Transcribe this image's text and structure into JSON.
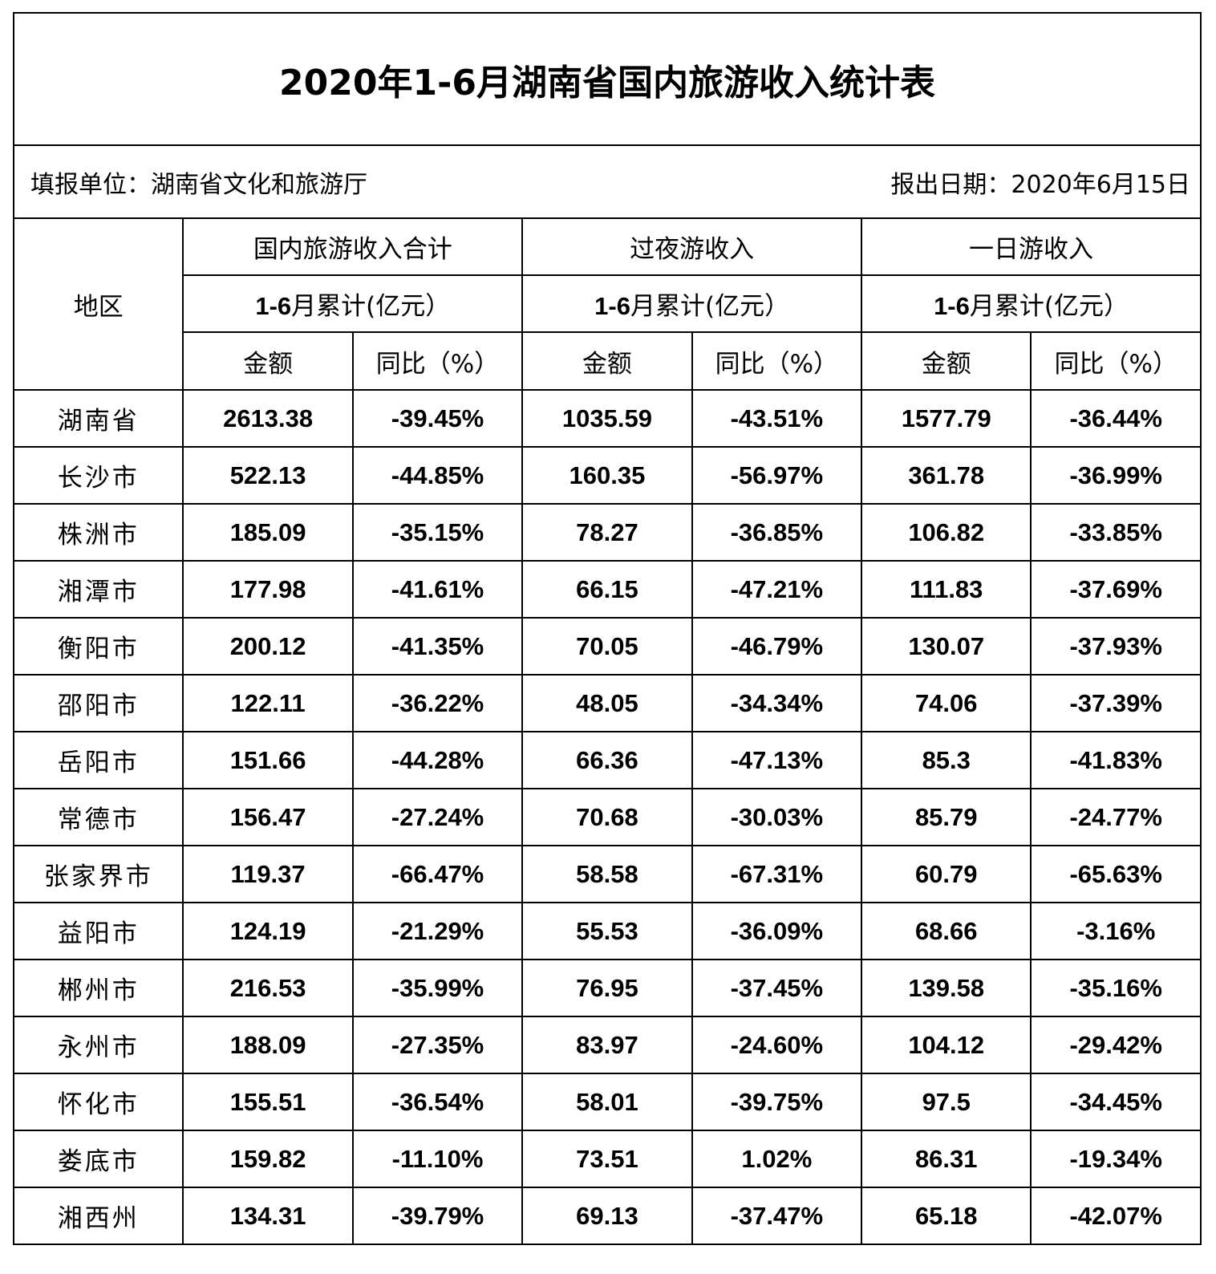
{
  "title": "2020年1-6月湖南省国内旅游收入统计表",
  "report_unit": "填报单位：湖南省文化和旅游厅",
  "report_date": "报出日期：2020年6月15日",
  "header": {
    "region": "地区",
    "groups": [
      "国内旅游收入合计",
      "过夜游收入",
      "一日游收入"
    ],
    "period": "1-6月累计(亿元）",
    "amount": "金额",
    "yoy": "同比（%）"
  },
  "rows": [
    {
      "region": "湖南省",
      "cells": [
        "2613.38",
        "-39.45%",
        "1035.59",
        "-43.51%",
        "1577.79",
        "-36.44%"
      ]
    },
    {
      "region": "长沙市",
      "cells": [
        "522.13",
        "-44.85%",
        "160.35",
        "-56.97%",
        "361.78",
        "-36.99%"
      ]
    },
    {
      "region": "株洲市",
      "cells": [
        "185.09",
        "-35.15%",
        "78.27",
        "-36.85%",
        "106.82",
        "-33.85%"
      ]
    },
    {
      "region": "湘潭市",
      "cells": [
        "177.98",
        "-41.61%",
        "66.15",
        "-47.21%",
        "111.83",
        "-37.69%"
      ]
    },
    {
      "region": "衡阳市",
      "cells": [
        "200.12",
        "-41.35%",
        "70.05",
        "-46.79%",
        "130.07",
        "-37.93%"
      ]
    },
    {
      "region": "邵阳市",
      "cells": [
        "122.11",
        "-36.22%",
        "48.05",
        "-34.34%",
        "74.06",
        "-37.39%"
      ]
    },
    {
      "region": "岳阳市",
      "cells": [
        "151.66",
        "-44.28%",
        "66.36",
        "-47.13%",
        "85.3",
        "-41.83%"
      ]
    },
    {
      "region": "常德市",
      "cells": [
        "156.47",
        "-27.24%",
        "70.68",
        "-30.03%",
        "85.79",
        "-24.77%"
      ]
    },
    {
      "region": "张家界市",
      "cells": [
        "119.37",
        "-66.47%",
        "58.58",
        "-67.31%",
        "60.79",
        "-65.63%"
      ]
    },
    {
      "region": "益阳市",
      "cells": [
        "124.19",
        "-21.29%",
        "55.53",
        "-36.09%",
        "68.66",
        "-3.16%"
      ]
    },
    {
      "region": "郴州市",
      "cells": [
        "216.53",
        "-35.99%",
        "76.95",
        "-37.45%",
        "139.58",
        "-35.16%"
      ]
    },
    {
      "region": "永州市",
      "cells": [
        "188.09",
        "-27.35%",
        "83.97",
        "-24.60%",
        "104.12",
        "-29.42%"
      ]
    },
    {
      "region": "怀化市",
      "cells": [
        "155.51",
        "-36.54%",
        "58.01",
        "-39.75%",
        "97.5",
        "-34.45%"
      ]
    },
    {
      "region": "娄底市",
      "cells": [
        "159.82",
        "-11.10%",
        "73.51",
        "1.02%",
        "86.31",
        "-19.34%"
      ]
    },
    {
      "region": "湘西州",
      "cells": [
        "134.31",
        "-39.79%",
        "69.13",
        "-37.47%",
        "65.18",
        "-42.07%"
      ]
    }
  ]
}
